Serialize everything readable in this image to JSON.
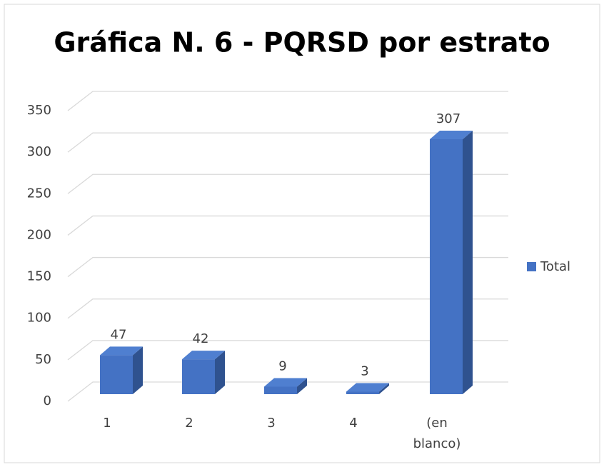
{
  "chart_data": {
    "type": "bar3d",
    "title": "Gráfica N. 6 - PQRSD por estrato",
    "categories": [
      "1",
      "2",
      "3",
      "4",
      "(en blanco)"
    ],
    "series": [
      {
        "name": "Total",
        "color": "#4472c4",
        "values": [
          47,
          42,
          9,
          3,
          307
        ]
      }
    ],
    "ylim": [
      0,
      350
    ],
    "yticks": [
      0,
      50,
      100,
      150,
      200,
      250,
      300,
      350
    ],
    "grid": true,
    "legend": "right"
  }
}
